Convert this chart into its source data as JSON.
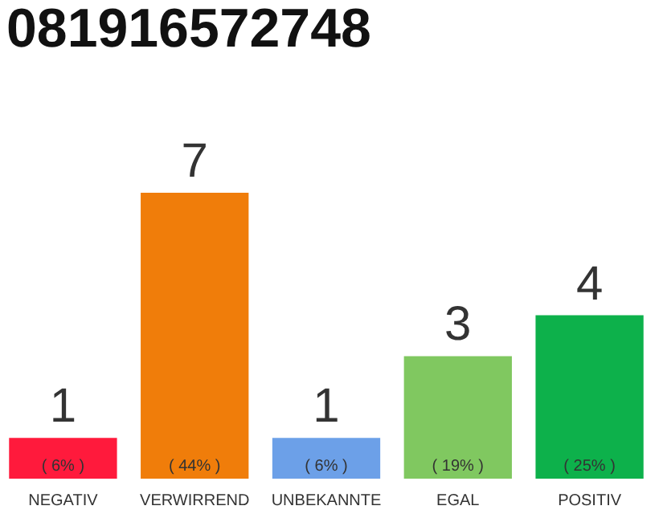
{
  "chart_data": {
    "type": "bar",
    "title": "081916572748",
    "categories": [
      "NEGATIV",
      "VERWIRREND",
      "UNBEKANNTE",
      "EGAL",
      "POSITIV"
    ],
    "values": [
      1,
      7,
      1,
      3,
      4
    ],
    "colors": [
      "#ff1a3c",
      "#f07d0a",
      "#6ca0e8",
      "#80c860",
      "#0db14b"
    ],
    "data_labels": true,
    "annotations": [
      "( 6% )",
      "( 44% )",
      "( 6% )",
      "( 19% )",
      "( 25% )"
    ],
    "grid": false
  }
}
